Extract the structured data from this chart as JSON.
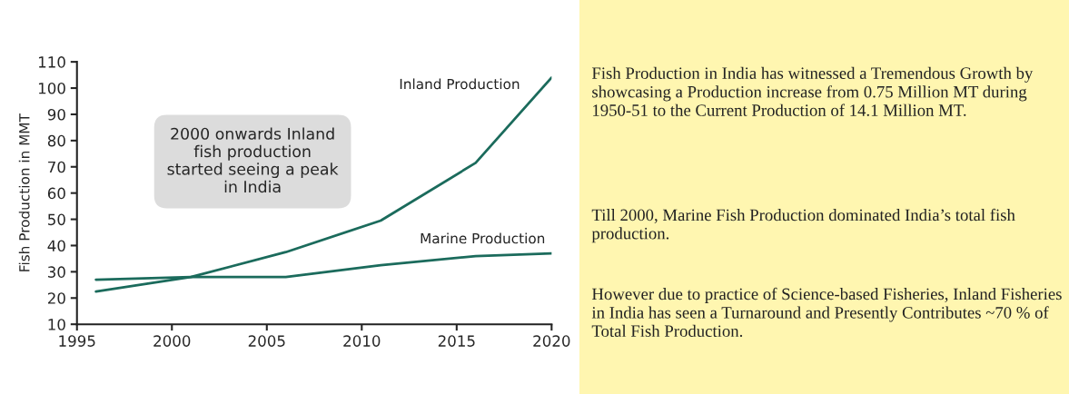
{
  "chart_data": [
    {
      "type": "line",
      "ylabel": "Fish Production in MMT",
      "x": [
        1996,
        2001,
        2006,
        2011,
        2016,
        2020
      ],
      "series": [
        {
          "name": "Inland Production",
          "color": "#1b6b5c",
          "values": [
            22.5,
            28,
            37.5,
            49.5,
            71.5,
            104
          ]
        },
        {
          "name": "Marine Production",
          "color": "#1b6b5c",
          "values": [
            27,
            28,
            28,
            32.5,
            36,
            37
          ]
        }
      ],
      "xlim": [
        1995,
        2020
      ],
      "xticks": [
        1995,
        2000,
        2005,
        2010,
        2015,
        2020
      ],
      "ylim": [
        10,
        110
      ],
      "yticks": [
        10,
        20,
        30,
        40,
        50,
        60,
        70,
        80,
        90,
        100,
        110
      ],
      "grid": false,
      "legend": false,
      "marker": "none",
      "line_style": "solid",
      "annotations": [
        "2000 onwards Inland\nfish production\nstarted seeing a peak\nin India"
      ]
    },
    {
      "type": "other",
      "annotations": [
        "Fish Production in India has witnessed a Tremendous Growth by showcasing a Production increase from 0.75 Million MT during 1950-51 to the Current Production of 14.1 Million MT.",
        "Till 2000, Marine Fish Production dominated India’s total fish production.",
        "However due to practice of Science-based Fisheries, Inland Fisheries in India has seen a Turnaround and Presently Contributes ~70 % of Total Fish Production."
      ]
    }
  ]
}
